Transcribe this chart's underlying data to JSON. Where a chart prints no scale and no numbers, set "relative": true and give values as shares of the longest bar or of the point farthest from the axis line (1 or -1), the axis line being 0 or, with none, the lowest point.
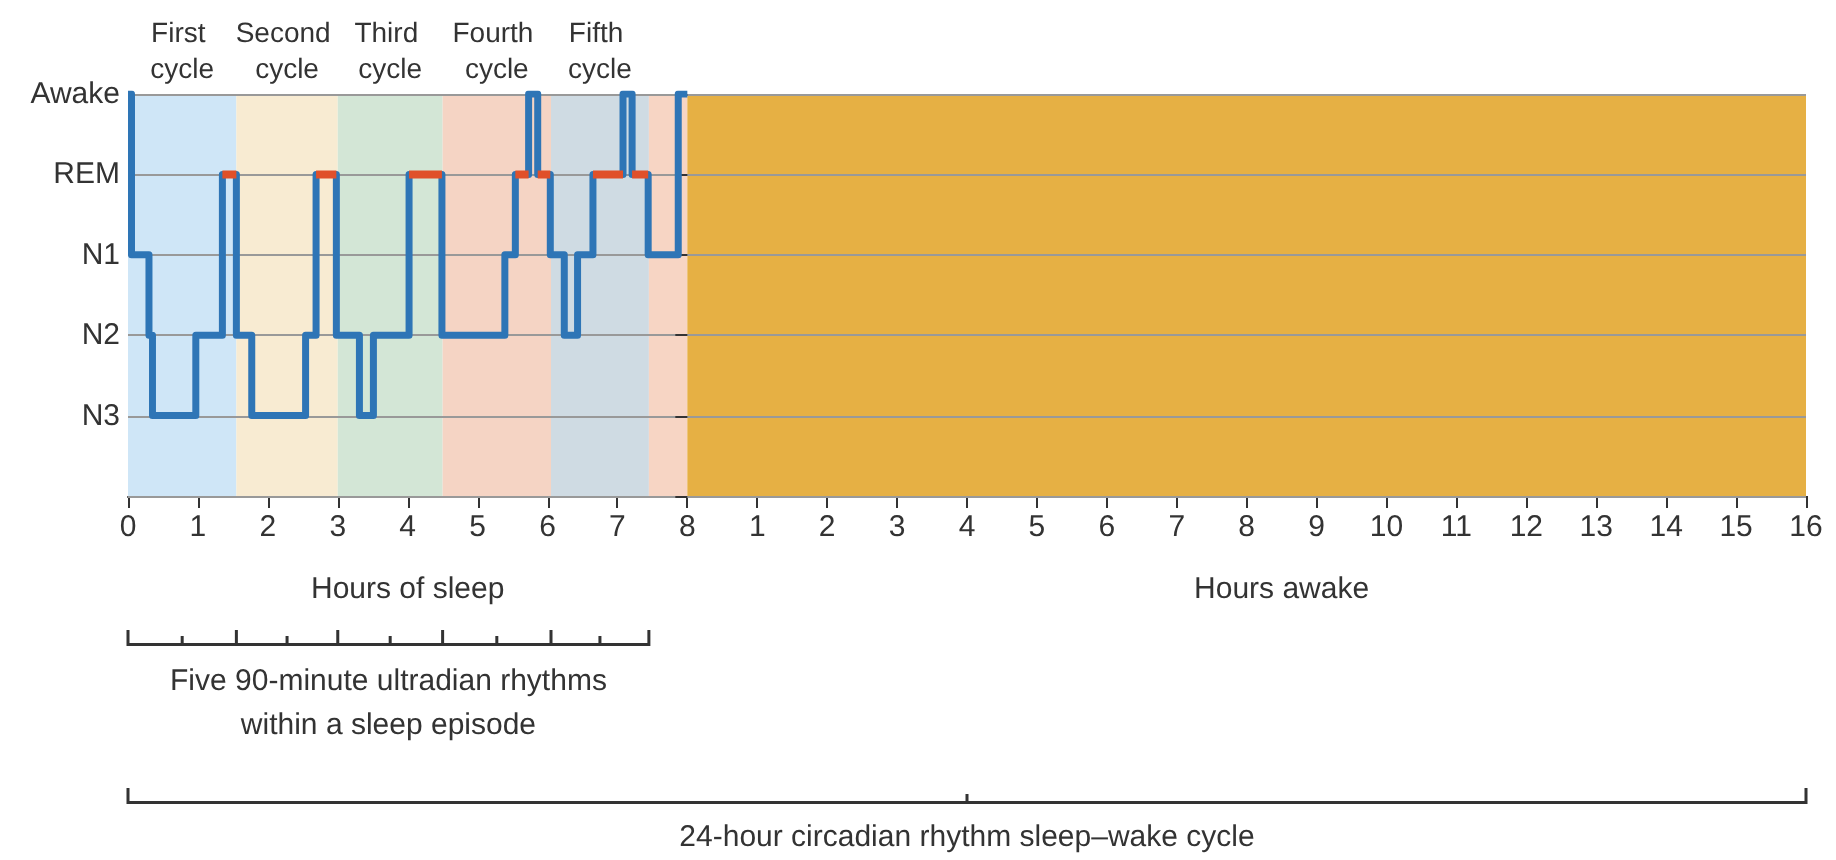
{
  "chart_data": {
    "type": "step",
    "xlabel": "Hours of sleep",
    "x2label": "Hours awake",
    "xlim": [
      0,
      24
    ],
    "xticks": [
      0,
      1,
      2,
      3,
      4,
      5,
      6,
      7,
      8
    ],
    "x2lim": [
      -8,
      16
    ],
    "x2ticks": [
      1,
      2,
      3,
      4,
      5,
      6,
      7,
      8,
      9,
      10,
      11,
      12,
      13,
      14,
      15,
      16
    ],
    "relative": true,
    "y_categories": [
      "Awake",
      "REM",
      "N1",
      "N2",
      "N3",
      null
    ],
    "grid": "y",
    "marker": "none",
    "line_style": "solid",
    "series": [
      {
        "type": "step",
        "color": "#2e75b6",
        "x": [
          0,
          0.05,
          0.3,
          0.35,
          0.97,
          1.35,
          1.55,
          1.77,
          2.54,
          2.69,
          2.98,
          3.31,
          3.51,
          4.02,
          4.49,
          5.39,
          5.54,
          5.73,
          5.86,
          6.04,
          6.24,
          6.43,
          6.65,
          7.08,
          7.21,
          7.44,
          7.87,
          8.0
        ],
        "values": [
          1,
          0.6,
          0.4,
          0.2,
          0.4,
          0.8,
          0.4,
          0.2,
          0.4,
          0.8,
          0.4,
          0.2,
          0.4,
          0.8,
          0.4,
          0.6,
          0.8,
          1,
          0.8,
          0.6,
          0.4,
          0.6,
          0.8,
          1,
          0.8,
          0.6,
          1,
          1
        ]
      },
      {
        "type": "line",
        "color": "#e0502a",
        "x": [
          1.35,
          1.55,
          null,
          2.69,
          2.98,
          null,
          4.02,
          4.49,
          null,
          5.54,
          5.73,
          null,
          5.86,
          6.04,
          null,
          6.65,
          7.08,
          null,
          7.21,
          7.44
        ],
        "values": [
          0.8,
          0.8,
          null,
          0.8,
          0.8,
          null,
          0.8,
          0.8,
          null,
          0.8,
          0.8,
          null,
          0.8,
          0.8,
          null,
          0.8,
          0.8,
          null,
          0.8,
          0.8
        ]
      }
    ],
    "bands": [
      {
        "axis": "x",
        "from": 0,
        "to": 1.55,
        "label": "First cycle",
        "color": "#cfe6f7"
      },
      {
        "axis": "x",
        "from": 1.55,
        "to": 3.0,
        "label": "Second cycle",
        "color": "#f8ebd2"
      },
      {
        "axis": "x",
        "from": 3.0,
        "to": 4.5,
        "label": "Third cycle",
        "color": "#d3e6d6"
      },
      {
        "axis": "x",
        "from": 4.5,
        "to": 6.05,
        "label": "Fourth cycle",
        "color": "#f5d4c4"
      },
      {
        "axis": "x",
        "from": 6.05,
        "to": 7.45,
        "label": "Fifth cycle",
        "color": "#cfdbe3"
      },
      {
        "axis": "x",
        "from": 7.45,
        "to": 8.0,
        "label": null,
        "color": "#f7d5c4"
      },
      {
        "axis": "x2",
        "from": 0,
        "to": 16,
        "label": null,
        "color": "#e6b044"
      }
    ],
    "annotations": [
      "Five 90-minute ultradian rhythms\nwithin a sleep episode",
      "24-hour circadian rhythm sleep–wake cycle"
    ]
  }
}
